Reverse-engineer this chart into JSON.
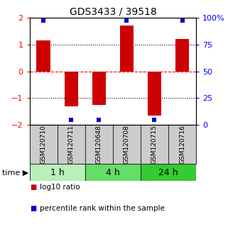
{
  "title": "GDS3433 / 39518",
  "samples": [
    "GSM120710",
    "GSM120711",
    "GSM120648",
    "GSM120708",
    "GSM120715",
    "GSM120716"
  ],
  "log10_ratio": [
    1.15,
    -1.3,
    -1.25,
    1.7,
    -1.65,
    1.2
  ],
  "percentile_rank": [
    97,
    5,
    5,
    97,
    5,
    97
  ],
  "groups": [
    {
      "label": "1 h",
      "indices": [
        0,
        1
      ],
      "color": "#b8f0b8"
    },
    {
      "label": "4 h",
      "indices": [
        2,
        3
      ],
      "color": "#66dd66"
    },
    {
      "label": "24 h",
      "indices": [
        4,
        5
      ],
      "color": "#33cc33"
    }
  ],
  "bar_color": "#cc0000",
  "dot_color": "#0000cc",
  "ylim": [
    -2,
    2
  ],
  "y2lim": [
    0,
    100
  ],
  "yticks": [
    -2,
    -1,
    0,
    1,
    2
  ],
  "y2ticks": [
    0,
    25,
    50,
    75,
    100
  ],
  "y2tick_labels": [
    "0",
    "25",
    "50",
    "75",
    "100%"
  ],
  "hline_positions": [
    -1,
    0,
    1
  ],
  "hline_styles": [
    "dotted",
    "dashed",
    "dotted"
  ],
  "hline_colors": [
    "black",
    "red",
    "black"
  ],
  "sample_box_color": "#cccccc",
  "sample_box_edge": "#333333",
  "background_color": "#ffffff",
  "legend_red_label": "log10 ratio",
  "legend_blue_label": "percentile rank within the sample",
  "time_label": "time",
  "bar_width": 0.5
}
